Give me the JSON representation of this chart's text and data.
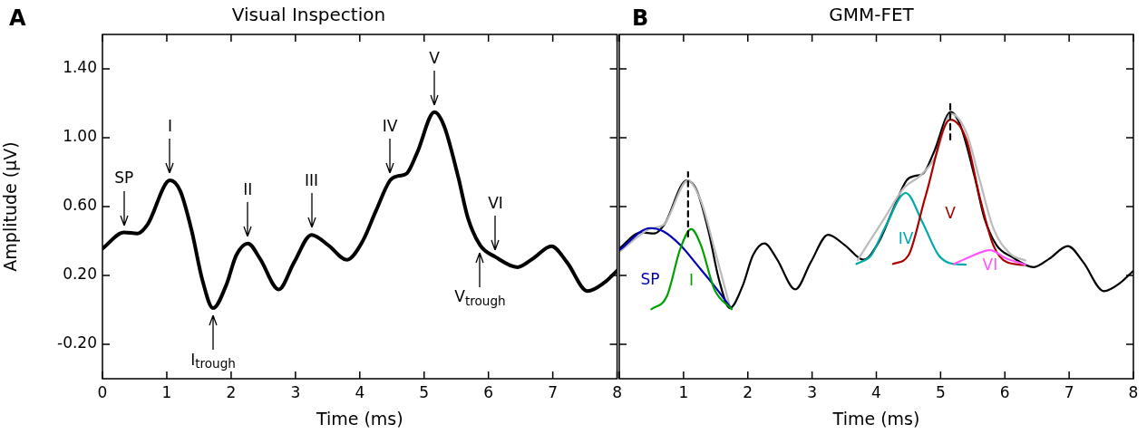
{
  "chart_data": [
    {
      "type": "line",
      "title": "Visual Inspection",
      "xlabel": "Time (ms)",
      "ylabel": "Amplitude (μV)",
      "x": [
        0,
        0.334,
        0.546,
        0.7,
        1.05,
        1.21,
        1.39,
        1.55,
        1.72,
        1.92,
        2.08,
        2.26,
        2.45,
        2.74,
        2.98,
        3.25,
        3.51,
        3.8,
        4.04,
        4.25,
        4.47,
        4.6,
        4.73,
        4.89,
        5.16,
        5.31,
        5.53,
        5.68,
        5.87,
        6.11,
        6.45,
        6.69,
        6.98,
        7.22,
        7.54,
        7.8,
        8.0
      ],
      "values": [
        0.356,
        0.45,
        0.444,
        0.495,
        0.752,
        0.69,
        0.455,
        0.178,
        0.01,
        0.14,
        0.317,
        0.386,
        0.297,
        0.119,
        0.277,
        0.436,
        0.376,
        0.291,
        0.396,
        0.574,
        0.752,
        0.778,
        0.792,
        0.911,
        1.149,
        1.069,
        0.772,
        0.535,
        0.376,
        0.307,
        0.248,
        0.297,
        0.37,
        0.277,
        0.109,
        0.158,
        0.228
      ],
      "color": "#000000",
      "marker": "none",
      "grid": false,
      "legend": false,
      "xlim": [
        0,
        8
      ],
      "xticks": [
        0,
        1,
        2,
        3,
        4,
        5,
        6,
        7,
        8
      ],
      "ylim": [
        -0.4,
        1.6
      ],
      "yticks": [
        {
          "value": -0.2,
          "label": "-0.20"
        },
        {
          "value": 0.2,
          "label": "0.20"
        },
        {
          "value": 0.6,
          "label": "0.60"
        },
        {
          "value": 1.0,
          "label": "1.00"
        },
        {
          "value": 1.4,
          "label": "1.40"
        }
      ],
      "annotations": [
        "A",
        {
          "text": "SP",
          "x": 0.334,
          "y": 0.45
        },
        {
          "text": "I",
          "x": 1.05,
          "y": 0.752
        },
        {
          "text": "II",
          "x": 2.26,
          "y": 0.386
        },
        {
          "text": "III",
          "x": 3.25,
          "y": 0.436
        },
        {
          "text": "IV",
          "x": 4.47,
          "y": 0.752
        },
        {
          "text": "V",
          "x": 5.16,
          "y": 1.149
        },
        {
          "text": "VI",
          "x": 6.11,
          "y": 0.307
        },
        {
          "text": "I$_{trough}$",
          "x": 1.72,
          "y": 0.01
        },
        {
          "text": "V$_{trough}$",
          "x": 5.87,
          "y": 0.376
        }
      ]
    },
    {
      "type": "line",
      "title": "GMM-FET",
      "xlabel": "Time (ms)",
      "marker": "none",
      "grid": false,
      "legend": false,
      "tick_labels": "x",
      "xlim": [
        0,
        8
      ],
      "xticks": [
        {
          "value": 0,
          "label": null
        },
        1,
        2,
        3,
        4,
        5,
        6,
        7,
        8
      ],
      "ylim": [
        -0.4,
        1.6
      ],
      "yticks": [
        {
          "value": -0.2,
          "label": null
        },
        {
          "value": 0.2,
          "label": null
        },
        {
          "value": 0.6,
          "label": null
        },
        {
          "value": 1.0,
          "label": null
        },
        {
          "value": 1.4,
          "label": null
        }
      ],
      "annotations": [
        "B"
      ],
      "series": [
        {
          "color": "#000000",
          "x": [
            0,
            0.334,
            0.546,
            0.7,
            1.05,
            1.21,
            1.39,
            1.55,
            1.72,
            1.92,
            2.08,
            2.26,
            2.45,
            2.74,
            2.98,
            3.25,
            3.51,
            3.8,
            4.04,
            4.25,
            4.47,
            4.6,
            4.73,
            4.89,
            5.16,
            5.31,
            5.53,
            5.68,
            5.87,
            6.11,
            6.45,
            6.69,
            6.98,
            7.22,
            7.54,
            7.8,
            8.0
          ],
          "values": [
            0.356,
            0.45,
            0.444,
            0.495,
            0.752,
            0.69,
            0.455,
            0.178,
            0.01,
            0.14,
            0.317,
            0.386,
            0.297,
            0.119,
            0.277,
            0.436,
            0.376,
            0.291,
            0.396,
            0.574,
            0.752,
            0.778,
            0.792,
            0.911,
            1.149,
            1.069,
            0.772,
            0.535,
            0.376,
            0.307,
            0.248,
            0.297,
            0.37,
            0.277,
            0.109,
            0.158,
            0.228
          ]
        },
        {
          "color": "#bbbbbb",
          "x": [
            0,
            0.48,
            0.69,
            1.07,
            1.27,
            1.48,
            1.72,
            2.7,
            3.71,
            4.13,
            4.44,
            4.66,
            4.92,
            5.16,
            5.4,
            5.61,
            5.82,
            6.08,
            6.32
          ],
          "values": [
            0.337,
            0.471,
            0.495,
            0.752,
            0.634,
            0.356,
            0.02,
            null,
            0.29,
            0.535,
            0.713,
            0.772,
            0.891,
            1.139,
            1.03,
            0.752,
            0.475,
            0.327,
            0.287
          ]
        },
        {
          "name": "SP",
          "color": "#0000b4",
          "x": [
            0,
            0.48,
            0.69,
            0.95,
            1.22,
            1.48,
            1.74
          ],
          "values": [
            0.347,
            0.475,
            0.455,
            0.376,
            0.257,
            0.139,
            0.01
          ]
        },
        {
          "name": "I",
          "color": "#00a000",
          "x": [
            0.5,
            0.74,
            0.95,
            1.12,
            1.27,
            1.48,
            1.75
          ],
          "values": [
            0.004,
            0.079,
            0.356,
            0.469,
            0.376,
            0.119,
            0.004
          ]
        },
        {
          "name": "IV",
          "color": "#00aaaa",
          "x": [
            3.69,
            3.92,
            4.13,
            4.46,
            4.71,
            4.97,
            5.19,
            5.39
          ],
          "values": [
            0.267,
            0.317,
            0.475,
            0.679,
            0.515,
            0.317,
            0.267,
            0.263
          ]
        },
        {
          "name": "V",
          "color": "#aa0000",
          "x": [
            4.26,
            4.5,
            4.76,
            5.15,
            5.4,
            5.61,
            5.82,
            6.03,
            6.3
          ],
          "values": [
            0.267,
            0.317,
            0.653,
            1.105,
            0.99,
            0.653,
            0.376,
            0.277,
            0.261
          ]
        },
        {
          "name": "VI",
          "color": "#ff55ff",
          "x": [
            5.21,
            5.45,
            5.77,
            6.03,
            6.32
          ],
          "values": [
            0.267,
            0.307,
            0.347,
            0.297,
            0.263
          ]
        },
        {
          "color": "#000000",
          "line_style": "dashed",
          "x": [
            1.07,
            1.07
          ],
          "values": [
            0.426,
            0.8
          ]
        },
        {
          "color": "#000000",
          "line_style": "dashed",
          "x": [
            5.15,
            5.15
          ],
          "values": [
            0.99,
            1.204
          ]
        }
      ]
    }
  ]
}
